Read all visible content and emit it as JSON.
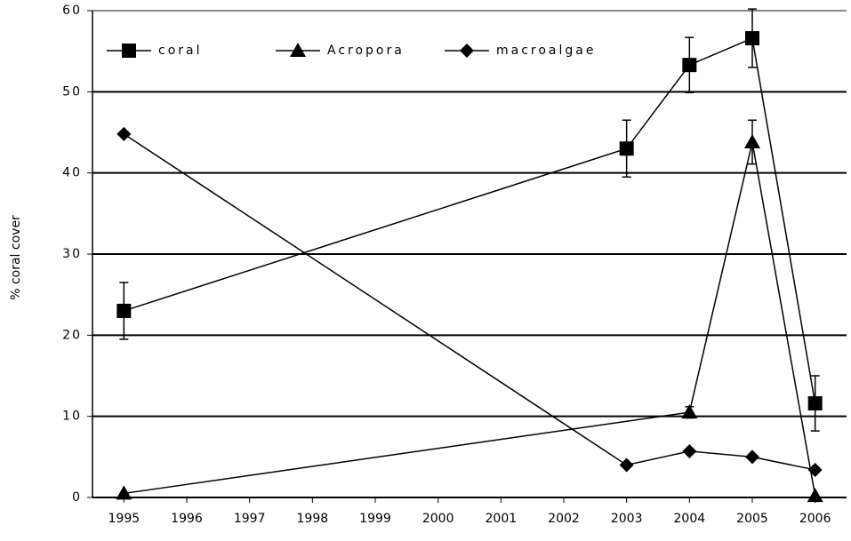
{
  "chart_data": {
    "type": "line",
    "ylabel": "% coral cover",
    "xlim": [
      1994.5,
      2006.5
    ],
    "xticks": [
      1995,
      1996,
      1997,
      1998,
      1999,
      2000,
      2001,
      2002,
      2003,
      2004,
      2005,
      2006
    ],
    "ylim": [
      0,
      60
    ],
    "yticks": [
      0,
      10,
      20,
      30,
      40,
      50,
      60
    ],
    "grid": true,
    "legend": "top-left",
    "series": [
      {
        "name": "coral",
        "color": "#000000",
        "marker": "square",
        "x": [
          1995,
          2003,
          2004,
          2005,
          2006
        ],
        "values": [
          23,
          43,
          53.3,
          56.6,
          11.6
        ],
        "errors": [
          3.5,
          3.5,
          3.4,
          3.6,
          3.4
        ]
      },
      {
        "name": "Acropora",
        "color": "#000000",
        "marker": "triangle",
        "x": [
          1995,
          2004,
          2005,
          2006
        ],
        "values": [
          0.5,
          10.5,
          43.8,
          0.2
        ],
        "errors": [
          0,
          0.7,
          2.7,
          0
        ]
      },
      {
        "name": "macroalgae",
        "color": "#000000",
        "marker": "diamond",
        "x": [
          1995,
          2003,
          2004,
          2005,
          2006
        ],
        "values": [
          44.8,
          4,
          5.7,
          5,
          3.4
        ]
      }
    ]
  }
}
